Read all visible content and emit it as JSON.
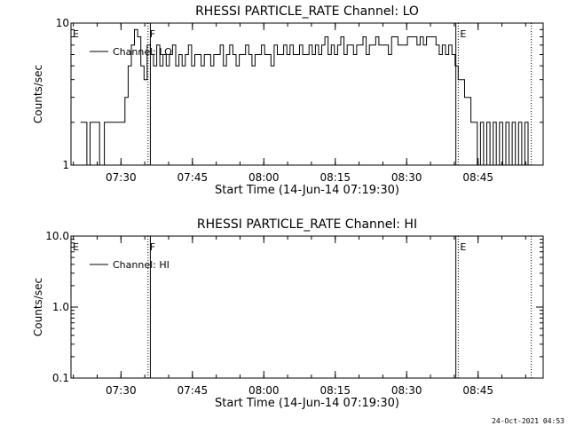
{
  "footer": {
    "timestamp": "24-Oct-2021 04:53"
  },
  "chart_data": [
    {
      "type": "line",
      "title": "RHESSI PARTICLE_RATE Channel: LO",
      "xlabel": "Start Time (14-Jun-14 07:19:30)",
      "ylabel": "Counts/sec",
      "yscale": "log",
      "ylim": [
        1,
        10
      ],
      "xlim": [
        "07:19:30",
        "08:58:40"
      ],
      "x_ticks": [
        "07:30",
        "07:45",
        "08:00",
        "08:15",
        "08:30",
        "08:45"
      ],
      "y_ticks": [
        {
          "value": 1,
          "label": "1"
        },
        {
          "value": 10,
          "label": "10"
        }
      ],
      "legend": {
        "label": "Channel: LO",
        "placement": "top-left"
      },
      "markers": [
        {
          "time": "07:19:30",
          "label": "E",
          "style": "dotted"
        },
        {
          "time": "07:35:40",
          "label": "F",
          "style": "dotted"
        },
        {
          "time": "07:36:10",
          "label": "",
          "style": "solid"
        },
        {
          "time": "08:40:20",
          "label": "",
          "style": "solid"
        },
        {
          "time": "08:40:50",
          "label": "E",
          "style": "dotted"
        },
        {
          "time": "08:56:10",
          "label": "",
          "style": "dotted"
        }
      ],
      "series": [
        {
          "name": "Channel: LO",
          "step": true,
          "x": [
            "07:21:30",
            "07:22:50",
            "07:23:30",
            "07:25:30",
            "07:26:30",
            "07:28:10",
            "07:30:50",
            "07:31:30",
            "07:32:10",
            "07:32:50",
            "07:33:30",
            "07:34:10",
            "07:34:50",
            "07:35:30",
            "07:36:10",
            "07:36:50",
            "07:37:30",
            "07:38:10",
            "07:38:50",
            "07:39:30",
            "07:40:10",
            "07:40:50",
            "07:41:30",
            "07:42:10",
            "07:42:50",
            "07:43:30",
            "07:44:10",
            "07:44:50",
            "07:45:30",
            "07:46:10",
            "07:46:50",
            "07:47:30",
            "07:48:10",
            "07:48:50",
            "07:49:30",
            "07:50:10",
            "07:50:50",
            "07:51:30",
            "07:52:10",
            "07:52:50",
            "07:53:30",
            "07:54:10",
            "07:54:50",
            "07:55:30",
            "07:56:10",
            "07:56:50",
            "07:57:30",
            "07:58:10",
            "07:58:50",
            "07:59:30",
            "08:00:10",
            "08:00:50",
            "08:01:30",
            "08:02:10",
            "08:02:50",
            "08:03:30",
            "08:04:10",
            "08:04:50",
            "08:05:30",
            "08:06:10",
            "08:06:50",
            "08:07:30",
            "08:08:10",
            "08:08:50",
            "08:09:30",
            "08:10:10",
            "08:10:50",
            "08:11:30",
            "08:12:10",
            "08:12:50",
            "08:13:30",
            "08:14:10",
            "08:14:50",
            "08:15:30",
            "08:16:10",
            "08:16:50",
            "08:17:30",
            "08:18:10",
            "08:18:50",
            "08:19:30",
            "08:20:10",
            "08:20:50",
            "08:21:30",
            "08:22:10",
            "08:22:50",
            "08:23:30",
            "08:24:10",
            "08:24:50",
            "08:25:30",
            "08:26:10",
            "08:26:50",
            "08:27:30",
            "08:28:10",
            "08:28:50",
            "08:29:30",
            "08:30:10",
            "08:30:50",
            "08:31:30",
            "08:32:10",
            "08:32:50",
            "08:33:30",
            "08:34:10",
            "08:34:50",
            "08:35:30",
            "08:36:10",
            "08:36:50",
            "08:37:30",
            "08:38:10",
            "08:38:50",
            "08:39:30",
            "08:40:10",
            "08:40:50",
            "08:41:30",
            "08:42:10",
            "08:42:50",
            "08:43:30",
            "08:44:10",
            "08:44:50",
            "08:45:30",
            "08:46:10",
            "08:46:50",
            "08:47:30",
            "08:48:10",
            "08:48:50",
            "08:49:30",
            "08:50:10",
            "08:50:50",
            "08:51:30",
            "08:52:10",
            "08:52:50",
            "08:53:30",
            "08:54:10",
            "08:54:50",
            "08:55:30",
            "08:56:10"
          ],
          "y": [
            2,
            1,
            2,
            1,
            2,
            2,
            3,
            5,
            7,
            9,
            8,
            5,
            4,
            7,
            6,
            5,
            7,
            5,
            6,
            5,
            6,
            7,
            5,
            6,
            5,
            6,
            7,
            5,
            6,
            6,
            5,
            6,
            6,
            5,
            6,
            6,
            7,
            5,
            6,
            7,
            6,
            5,
            6,
            6,
            7,
            6,
            5,
            6,
            6,
            7,
            6,
            6,
            5,
            7,
            6,
            6,
            7,
            6,
            7,
            6,
            6,
            7,
            6,
            6,
            7,
            6,
            7,
            6,
            7,
            8,
            6,
            7,
            6,
            7,
            8,
            6,
            7,
            7,
            6,
            7,
            7,
            8,
            6,
            7,
            7,
            8,
            7,
            7,
            7,
            6,
            8,
            8,
            7,
            7,
            7,
            8,
            8,
            8,
            7,
            8,
            7,
            8,
            8,
            8,
            7,
            6,
            7,
            6,
            7,
            6,
            5,
            4,
            4,
            3,
            3,
            2,
            2,
            1,
            2,
            1,
            2,
            1,
            2,
            1,
            2,
            1,
            2,
            1,
            2,
            1,
            2,
            1,
            2,
            1,
            1
          ]
        }
      ]
    },
    {
      "type": "line",
      "title": "RHESSI PARTICLE_RATE Channel: HI",
      "xlabel": "Start Time (14-Jun-14 07:19:30)",
      "ylabel": "Counts/sec",
      "yscale": "log",
      "ylim": [
        0.1,
        10
      ],
      "xlim": [
        "07:19:30",
        "08:58:40"
      ],
      "x_ticks": [
        "07:30",
        "07:45",
        "08:00",
        "08:15",
        "08:30",
        "08:45"
      ],
      "y_ticks": [
        {
          "value": 0.1,
          "label": "0.1"
        },
        {
          "value": 1,
          "label": "1.0"
        },
        {
          "value": 10,
          "label": "10.0"
        }
      ],
      "legend": {
        "label": "Channel: HI",
        "placement": "top-left"
      },
      "markers": [
        {
          "time": "07:19:30",
          "label": "E",
          "style": "dotted"
        },
        {
          "time": "07:35:40",
          "label": "F",
          "style": "dotted"
        },
        {
          "time": "07:36:10",
          "label": "",
          "style": "solid"
        },
        {
          "time": "08:40:20",
          "label": "",
          "style": "solid"
        },
        {
          "time": "08:40:50",
          "label": "E",
          "style": "dotted"
        },
        {
          "time": "08:56:10",
          "label": "",
          "style": "dotted"
        }
      ],
      "series": [
        {
          "name": "Channel: HI",
          "step": true,
          "x": [],
          "y": []
        }
      ]
    }
  ]
}
